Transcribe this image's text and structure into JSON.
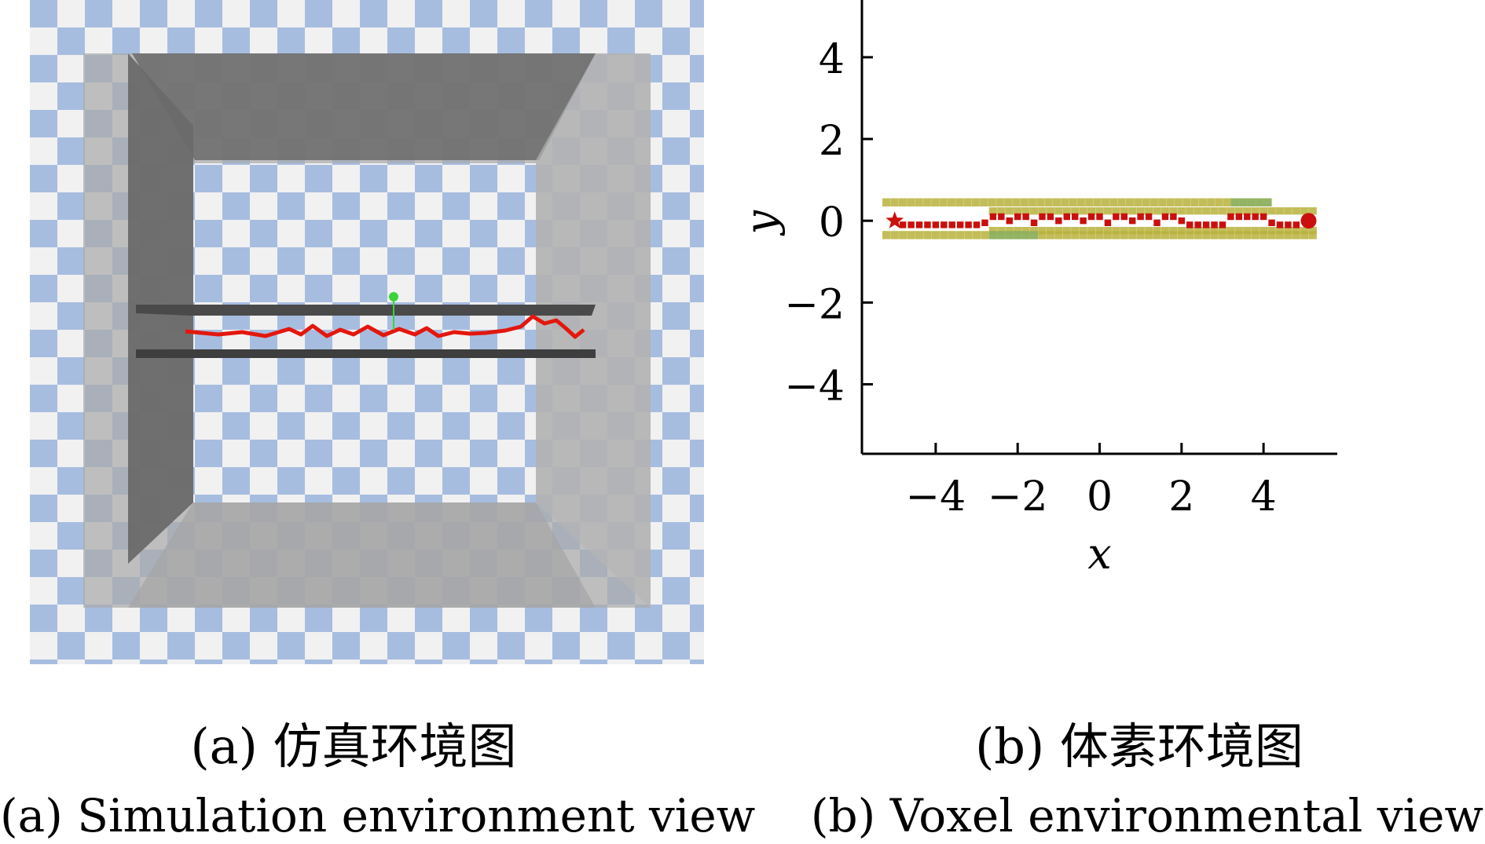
{
  "panel_a": {
    "caption_cn": "(a) 仿真环境图",
    "caption_en": "(a) Simulation environment view",
    "colors": {
      "checker_blue": "#a7bde0",
      "checker_white": "#f1f1f1",
      "wall_light": "#a9a9a9",
      "wall_dark": "#6a6a6a",
      "path": "#e3170e",
      "marker": "#3bd23b"
    }
  },
  "panel_b": {
    "caption_cn": "(b) 体素环境图",
    "caption_en": "(b) Voxel environmental view",
    "colors": {
      "wall_voxel": "#b8b23c",
      "wall_voxel_alt": "#7fb06a",
      "path_voxel": "#c9100d",
      "axis": "#000000"
    }
  },
  "chart_data": {
    "type": "scatter",
    "xlabel": "x",
    "ylabel": "y",
    "xlim": [
      -5.8,
      5.8
    ],
    "ylim": [
      -5.7,
      5.4
    ],
    "xticks": [
      -4,
      -2,
      0,
      2,
      4
    ],
    "yticks": [
      4,
      2,
      0,
      -2,
      -4
    ],
    "xtick_labels": [
      "−4",
      "−2",
      "0",
      "2",
      "4"
    ],
    "ytick_labels": [
      "4",
      "2",
      "0",
      "−2",
      "−4"
    ],
    "grid": false,
    "start": {
      "x": -5.0,
      "y": 0.0,
      "marker": "star"
    },
    "goal": {
      "x": 5.1,
      "y": 0.0,
      "marker": "circle"
    },
    "walls": [
      {
        "name": "upper-wall",
        "x": [
          -5.3,
          4.2
        ],
        "y": [
          0.35,
          0.55
        ]
      },
      {
        "name": "upper-inner-wall",
        "x": [
          -2.7,
          5.3
        ],
        "y": [
          0.15,
          0.33
        ]
      },
      {
        "name": "lower-inner-wall",
        "x": [
          -2.7,
          5.3
        ],
        "y": [
          -0.33,
          -0.15
        ]
      },
      {
        "name": "lower-wall",
        "x": [
          -5.3,
          5.3
        ],
        "y": [
          -0.45,
          -0.25
        ]
      }
    ],
    "path_points": [
      [
        -4.8,
        -0.1
      ],
      [
        -4.6,
        -0.1
      ],
      [
        -4.4,
        -0.1
      ],
      [
        -4.2,
        -0.1
      ],
      [
        -4.0,
        -0.1
      ],
      [
        -3.8,
        -0.1
      ],
      [
        -3.6,
        -0.1
      ],
      [
        -3.4,
        -0.1
      ],
      [
        -3.2,
        -0.1
      ],
      [
        -3.0,
        -0.1
      ],
      [
        -2.8,
        -0.05
      ],
      [
        -2.6,
        0.1
      ],
      [
        -2.4,
        0.1
      ],
      [
        -2.2,
        0.0
      ],
      [
        -2.0,
        0.1
      ],
      [
        -1.8,
        0.1
      ],
      [
        -1.6,
        -0.05
      ],
      [
        -1.4,
        0.1
      ],
      [
        -1.2,
        0.1
      ],
      [
        -1.0,
        0.0
      ],
      [
        -0.8,
        0.1
      ],
      [
        -0.6,
        0.1
      ],
      [
        -0.4,
        0.0
      ],
      [
        -0.2,
        0.1
      ],
      [
        0.0,
        0.1
      ],
      [
        0.2,
        -0.05
      ],
      [
        0.4,
        0.1
      ],
      [
        0.6,
        0.1
      ],
      [
        0.8,
        0.0
      ],
      [
        1.0,
        0.1
      ],
      [
        1.2,
        0.1
      ],
      [
        1.4,
        -0.05
      ],
      [
        1.6,
        0.1
      ],
      [
        1.8,
        0.1
      ],
      [
        2.0,
        0.0
      ],
      [
        2.2,
        -0.1
      ],
      [
        2.4,
        -0.1
      ],
      [
        2.6,
        -0.1
      ],
      [
        2.8,
        -0.1
      ],
      [
        3.0,
        -0.1
      ],
      [
        3.2,
        0.1
      ],
      [
        3.4,
        0.1
      ],
      [
        3.6,
        0.1
      ],
      [
        3.8,
        0.1
      ],
      [
        4.0,
        0.1
      ],
      [
        4.2,
        -0.05
      ],
      [
        4.4,
        -0.1
      ],
      [
        4.6,
        -0.1
      ],
      [
        4.8,
        -0.1
      ]
    ]
  }
}
